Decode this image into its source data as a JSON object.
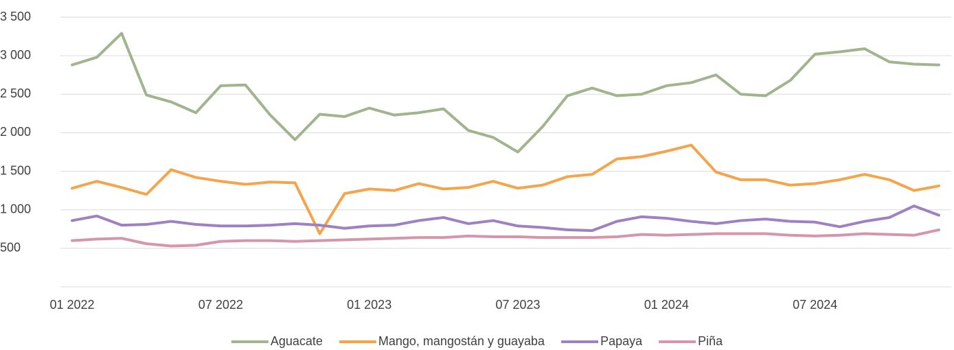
{
  "chart_data": {
    "type": "line",
    "categories": [
      "01 2022",
      null,
      null,
      null,
      null,
      null,
      "07 2022",
      null,
      null,
      null,
      null,
      null,
      "01 2023",
      null,
      null,
      null,
      null,
      null,
      "07 2023",
      null,
      null,
      null,
      null,
      null,
      "01 2024",
      null,
      null,
      null,
      null,
      null,
      "07 2024",
      null,
      null,
      null,
      null,
      null
    ],
    "series": [
      {
        "name": "Aguacate",
        "color": "#a2b48e",
        "values": [
          2880,
          2980,
          3290,
          2490,
          2400,
          2260,
          2610,
          2620,
          2230,
          1910,
          2240,
          2210,
          2320,
          2230,
          2260,
          2310,
          2030,
          1940,
          1750,
          2080,
          2480,
          2580,
          2480,
          2500,
          2610,
          2650,
          2750,
          2500,
          2480,
          2680,
          3020,
          3050,
          3090,
          2920,
          2890,
          2880
        ]
      },
      {
        "name": "Mango, mangostán y guayaba",
        "color": "#f4a54b",
        "values": [
          1280,
          1370,
          1290,
          1200,
          1520,
          1420,
          1370,
          1330,
          1360,
          1350,
          690,
          1210,
          1270,
          1250,
          1340,
          1270,
          1290,
          1370,
          1280,
          1320,
          1430,
          1460,
          1660,
          1690,
          1760,
          1840,
          1490,
          1390,
          1390,
          1320,
          1340,
          1390,
          1460,
          1390,
          1250,
          1310
        ]
      },
      {
        "name": "Papaya",
        "color": "#9e81c3",
        "values": [
          860,
          920,
          800,
          810,
          850,
          810,
          790,
          790,
          800,
          820,
          800,
          760,
          790,
          800,
          860,
          900,
          820,
          860,
          790,
          770,
          740,
          730,
          850,
          910,
          890,
          850,
          820,
          860,
          880,
          850,
          840,
          780,
          850,
          900,
          1050,
          930
        ]
      },
      {
        "name": "Piña",
        "color": "#d595ab",
        "values": [
          600,
          620,
          630,
          560,
          530,
          540,
          590,
          600,
          600,
          590,
          600,
          610,
          620,
          630,
          640,
          640,
          660,
          650,
          650,
          640,
          640,
          640,
          650,
          680,
          670,
          680,
          690,
          690,
          690,
          670,
          660,
          670,
          690,
          680,
          670,
          740
        ]
      }
    ],
    "ylim": [
      0,
      3500
    ],
    "yticks": [
      500,
      {
        "value": 1000,
        "label": "1 000"
      },
      {
        "value": 1500,
        "label": "1 500"
      },
      {
        "value": 2000,
        "label": "2 000"
      },
      {
        "value": 2500,
        "label": "2 500"
      },
      {
        "value": 3000,
        "label": "3 000"
      },
      {
        "value": 3500,
        "label": "3 500"
      }
    ],
    "grid": true,
    "legend": "bottom"
  }
}
